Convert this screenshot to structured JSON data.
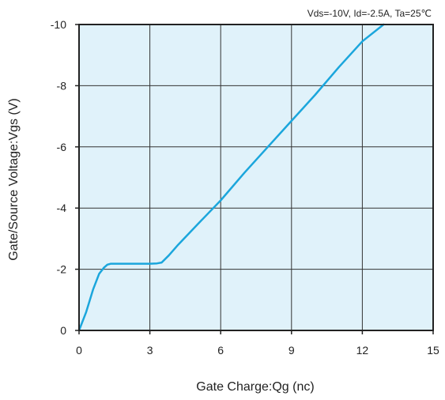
{
  "chart_data": {
    "type": "line",
    "title": "",
    "conditions": "Vds=-10V, Id=-2.5A, Ta=25℃",
    "xlabel": "Gate Charge:Qg  (nc)",
    "ylabel": "Gate/Source Voltage:Vgs  (V)",
    "xlim": [
      0,
      15
    ],
    "ylim": [
      0,
      -10
    ],
    "x_ticks": [
      0,
      3,
      6,
      9,
      12,
      15
    ],
    "x_tick_labels": [
      "0",
      "3",
      "6",
      "9",
      "12",
      "15"
    ],
    "y_ticks": [
      0,
      -2,
      -4,
      -6,
      -8,
      -10
    ],
    "y_tick_labels": [
      "0",
      "-2",
      "-4",
      "-6",
      "-8",
      "-10"
    ],
    "grid": true,
    "series": [
      {
        "color": "#1ba6dc",
        "x": [
          0,
          0.3,
          0.6,
          0.85,
          1.05,
          1.2,
          1.35,
          3.0,
          3.3,
          3.5,
          3.8,
          4.2,
          5.0,
          6.0,
          7.0,
          8.0,
          9.0,
          10.0,
          11.0,
          12.0,
          12.9
        ],
        "y": [
          0,
          -0.6,
          -1.35,
          -1.85,
          -2.05,
          -2.15,
          -2.18,
          -2.18,
          -2.19,
          -2.22,
          -2.45,
          -2.8,
          -3.45,
          -4.25,
          -5.15,
          -6.0,
          -6.85,
          -7.7,
          -8.6,
          -9.45,
          -10.0
        ]
      }
    ]
  },
  "style": {
    "plot_background": "#e0f2fa",
    "grid_color": "#333333",
    "frame_color": "#222222"
  }
}
